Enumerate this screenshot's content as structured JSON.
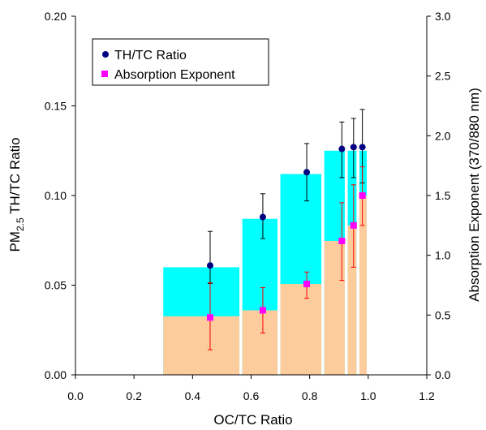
{
  "chart_data": {
    "type": "bar",
    "xlabel": "OC/TC Ratio",
    "ylabel_main": "PM",
    "ylabel_sub": "2.5",
    "ylabel_rest": " TH/TC Ratio",
    "y2label": "Absorption Exponent (370/880 nm)",
    "xlim": [
      0.0,
      1.2
    ],
    "ylim": [
      0.0,
      0.2
    ],
    "y2lim": [
      0.0,
      3.0
    ],
    "x_ticks": [
      "0.0",
      "0.2",
      "0.4",
      "0.6",
      "0.8",
      "1.0",
      "1.2"
    ],
    "y_ticks": [
      "0.00",
      "0.05",
      "0.10",
      "0.15",
      "0.20"
    ],
    "y2_ticks": [
      "0.0",
      "0.5",
      "1.0",
      "1.5",
      "2.0",
      "2.5",
      "3.0"
    ],
    "grid": false,
    "legend_position": "top-left",
    "bins": [
      {
        "x0": 0.3,
        "x1": 0.56,
        "thtc_bar": 0.06,
        "abs_bar": 0.49
      },
      {
        "x0": 0.57,
        "x1": 0.69,
        "thtc_bar": 0.087,
        "abs_bar": 0.54
      },
      {
        "x0": 0.7,
        "x1": 0.84,
        "thtc_bar": 0.112,
        "abs_bar": 0.76
      },
      {
        "x0": 0.85,
        "x1": 0.92,
        "thtc_bar": 0.125,
        "abs_bar": 1.12
      },
      {
        "x0": 0.93,
        "x1": 0.96,
        "thtc_bar": 0.125,
        "abs_bar": 1.25
      },
      {
        "x0": 0.97,
        "x1": 0.995,
        "thtc_bar": 0.125,
        "abs_bar": 1.5
      }
    ],
    "series": [
      {
        "name": "TH/TC Ratio",
        "axis": "left",
        "color": "#000080",
        "marker": "circle",
        "points": [
          {
            "x": 0.46,
            "y": 0.061,
            "err_low": 0.01,
            "err_high": 0.019
          },
          {
            "x": 0.64,
            "y": 0.088,
            "err_low": 0.012,
            "err_high": 0.013
          },
          {
            "x": 0.79,
            "y": 0.113,
            "err_low": 0.016,
            "err_high": 0.016
          },
          {
            "x": 0.91,
            "y": 0.126,
            "err_low": 0.016,
            "err_high": 0.015
          },
          {
            "x": 0.95,
            "y": 0.127,
            "err_low": 0.017,
            "err_high": 0.016
          },
          {
            "x": 0.98,
            "y": 0.127,
            "err_low": 0.02,
            "err_high": 0.021
          }
        ]
      },
      {
        "name": "Absorption Exponent",
        "axis": "right",
        "color": "#ff00ff",
        "marker": "square",
        "points": [
          {
            "x": 0.46,
            "y": 0.48,
            "err_low": 0.27,
            "err_high": 0.29
          },
          {
            "x": 0.64,
            "y": 0.54,
            "err_low": 0.19,
            "err_high": 0.19
          },
          {
            "x": 0.79,
            "y": 0.76,
            "err_low": 0.12,
            "err_high": 0.1
          },
          {
            "x": 0.91,
            "y": 1.12,
            "err_low": 0.33,
            "err_high": 0.32
          },
          {
            "x": 0.95,
            "y": 1.25,
            "err_low": 0.35,
            "err_high": 0.34
          },
          {
            "x": 0.98,
            "y": 1.5,
            "err_low": 0.25,
            "err_high": 0.24
          }
        ]
      }
    ],
    "colors": {
      "thtc_bar": "#00ffff",
      "abs_bar": "#fccc9c",
      "thtc_error": "#000000",
      "abs_error": "#ff0000"
    }
  }
}
